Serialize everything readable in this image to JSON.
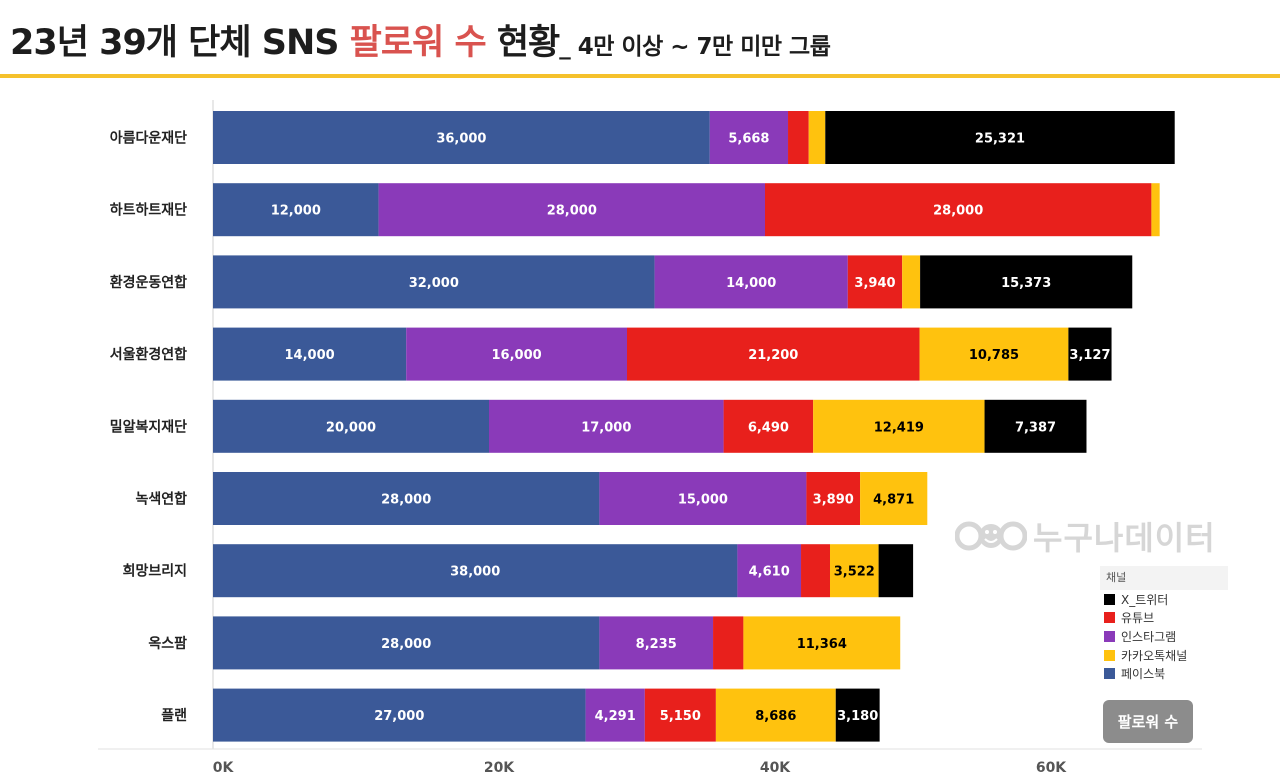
{
  "title": {
    "main": "23년 39개 단체 SNS ",
    "highlight": "팔로워 수",
    "rest": " 현황",
    "subtitle": "_ 4만 이상 ~ 7만 미만 그룹"
  },
  "colors": {
    "accent_rule": "#f5c12b",
    "highlight": "#d9534f",
    "facebook": "#3b5998",
    "instagram": "#8a3ab9",
    "youtube": "#e8201c",
    "kakao": "#ffc20e",
    "x_twitter": "#000000"
  },
  "watermark": {
    "text": "누구나데이터",
    "logo_icon": "eye-circles-logo-icon"
  },
  "legend": {
    "title": "채널",
    "items": [
      {
        "label": "X_트위터",
        "color": "#000000"
      },
      {
        "label": "유튜브",
        "color": "#e8201c"
      },
      {
        "label": "인스타그램",
        "color": "#8a3ab9"
      },
      {
        "label": "카카오톡채널",
        "color": "#ffc20e"
      },
      {
        "label": "페이스북",
        "color": "#3b5998"
      }
    ]
  },
  "button": {
    "label": "팔로워 수"
  },
  "chart_data": {
    "type": "bar",
    "orientation": "horizontal",
    "stacked": true,
    "categories": [
      "아름다운재단",
      "하트하트재단",
      "환경운동연합",
      "서울환경연합",
      "밀알복지재단",
      "녹색연합",
      "희망브리지",
      "옥스팜",
      "플랜"
    ],
    "series": [
      {
        "name": "페이스북",
        "color": "#3b5998",
        "label_color": "#ffffff",
        "values": [
          36000,
          12000,
          32000,
          14000,
          20000,
          28000,
          38000,
          28000,
          27000
        ],
        "labels": [
          "36,000",
          "12,000",
          "32,000",
          "14,000",
          "20,000",
          "28,000",
          "38,000",
          "28,000",
          "27,000"
        ]
      },
      {
        "name": "인스타그램",
        "color": "#8a3ab9",
        "label_color": "#ffffff",
        "values": [
          5668,
          28000,
          14000,
          16000,
          17000,
          15000,
          4610,
          8235,
          4291
        ],
        "labels": [
          "5,668",
          "28,000",
          "14,000",
          "16,000",
          "17,000",
          "15,000",
          "4,610",
          "8,235",
          "4,291"
        ]
      },
      {
        "name": "유튜브",
        "color": "#e8201c",
        "label_color": "#ffffff",
        "values": [
          1500,
          28000,
          3940,
          21200,
          6490,
          3890,
          2100,
          2200,
          5150
        ],
        "labels": [
          "",
          "28,000",
          "3,940",
          "21,200",
          "6,490",
          "3,890",
          "",
          "",
          "5,150"
        ]
      },
      {
        "name": "카카오톡채널",
        "color": "#ffc20e",
        "label_color": "#000000",
        "values": [
          1200,
          600,
          1300,
          10785,
          12419,
          4871,
          3522,
          11364,
          8686
        ],
        "labels": [
          "",
          "",
          "",
          "10,785",
          "12,419",
          "4,871",
          "3,522",
          "11,364",
          "8,686"
        ]
      },
      {
        "name": "X_트위터",
        "color": "#000000",
        "label_color": "#ffffff",
        "values": [
          25321,
          0,
          15373,
          3127,
          7387,
          0,
          2500,
          0,
          3180
        ],
        "labels": [
          "25,321",
          "",
          "15,373",
          "3,127",
          "7,387",
          "",
          "",
          "",
          "3,180"
        ]
      }
    ],
    "x_ticks": [
      0,
      20000,
      40000,
      60000
    ],
    "x_tick_labels": [
      "0K",
      "20K",
      "40K",
      "60K"
    ],
    "xlim": [
      0,
      70000
    ],
    "grid": false,
    "legend_position": "right-bottom"
  }
}
